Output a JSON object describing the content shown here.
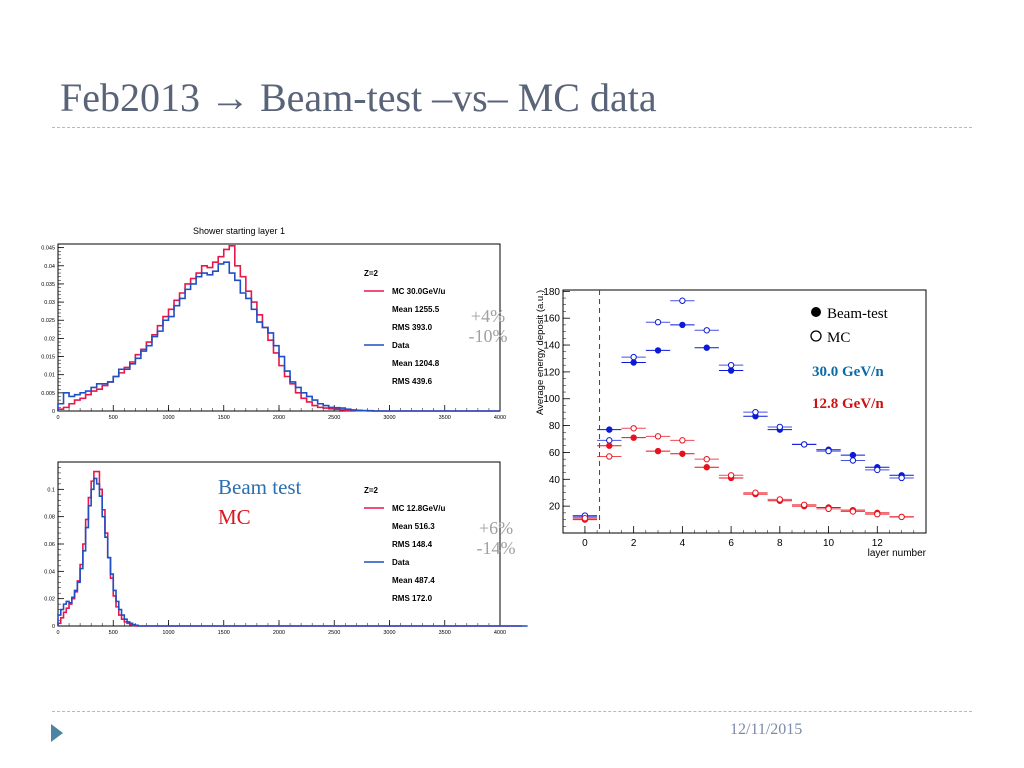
{
  "slide": {
    "title": "Feb2013 → Beam-test –vs– MC data",
    "date": "12/11/2015"
  },
  "colors": {
    "mc": "#e8174a",
    "data": "#1f4fc4",
    "blue_marker": "#0a1ad6",
    "red_marker": "#e8101c",
    "title": "#5a6478",
    "bullet": "#4a86a4"
  },
  "overlays": {
    "top_pct_mean": "+4%",
    "top_pct_rms": "-10%",
    "bottom_pct_mean": "+6%",
    "bottom_pct_rms": "-14%",
    "beam_test_label": "Beam test",
    "mc_label": "MC"
  },
  "chart_data": [
    {
      "type": "step-histogram",
      "title": "Shower starting layer 1",
      "xlim": [
        0,
        4000
      ],
      "ylim": [
        0,
        0.046
      ],
      "x_ticks": [
        0,
        500,
        1000,
        1500,
        2000,
        2500,
        3000,
        3500,
        4000
      ],
      "y_ticks": [
        0,
        0.005,
        0.01,
        0.015,
        0.02,
        0.025,
        0.03,
        0.035,
        0.04,
        0.045
      ],
      "y_tick_labels": [
        "0",
        "0.005",
        "0.01",
        "0.015",
        "0.02",
        "0.025",
        "0.03",
        "0.035",
        "0.04",
        "0.045"
      ],
      "bin_width": 50,
      "legend": {
        "header": "Z=2",
        "entries": [
          {
            "name": "MC 30.0GeV/u",
            "color": "#e8174a",
            "stats": [
              "Mean  1255.5",
              "RMS  393.0"
            ]
          },
          {
            "name": "Data",
            "color": "#1f4fc4",
            "stats": [
              "Mean  1204.8",
              "RMS  439.6"
            ]
          }
        ]
      },
      "series": [
        {
          "name": "MC 30.0GeV/u",
          "color": "#e8174a",
          "values": [
            0.0005,
            0.001,
            0.002,
            0.003,
            0.0035,
            0.0045,
            0.0055,
            0.006,
            0.007,
            0.008,
            0.0095,
            0.0105,
            0.012,
            0.0135,
            0.0155,
            0.017,
            0.019,
            0.021,
            0.0235,
            0.026,
            0.028,
            0.0305,
            0.0325,
            0.035,
            0.0365,
            0.038,
            0.04,
            0.0395,
            0.041,
            0.0425,
            0.0445,
            0.0455,
            0.04,
            0.037,
            0.033,
            0.03,
            0.0265,
            0.023,
            0.0195,
            0.016,
            0.0125,
            0.0095,
            0.0075,
            0.005,
            0.0035,
            0.0025,
            0.0015,
            0.001,
            0.0008,
            0.0006,
            0.0005,
            0.0003,
            0.0002,
            0.0002,
            0.0001,
            0.0001,
            0,
            0,
            0,
            0,
            0,
            0,
            0,
            0,
            0,
            0,
            0,
            0,
            0,
            0,
            0,
            0,
            0,
            0,
            0,
            0,
            0,
            0,
            0,
            0
          ]
        },
        {
          "name": "Data",
          "color": "#1f4fc4",
          "values": [
            0.002,
            0.005,
            0.004,
            0.0045,
            0.005,
            0.0055,
            0.0065,
            0.0075,
            0.0075,
            0.008,
            0.0095,
            0.0115,
            0.0115,
            0.013,
            0.0145,
            0.0165,
            0.018,
            0.0205,
            0.022,
            0.025,
            0.026,
            0.029,
            0.031,
            0.0335,
            0.035,
            0.037,
            0.038,
            0.0375,
            0.0385,
            0.0405,
            0.041,
            0.038,
            0.036,
            0.0325,
            0.031,
            0.028,
            0.0245,
            0.023,
            0.0215,
            0.018,
            0.015,
            0.011,
            0.008,
            0.0065,
            0.005,
            0.004,
            0.003,
            0.002,
            0.0015,
            0.001,
            0.0009,
            0.0008,
            0.0005,
            0.0003,
            0.0002,
            0.0001,
            0.0001,
            0,
            0,
            0,
            0,
            0,
            0,
            0,
            0,
            0,
            0,
            0,
            0,
            0,
            0,
            0,
            0,
            0,
            0,
            0,
            0,
            0,
            0,
            0
          ]
        }
      ]
    },
    {
      "type": "step-histogram",
      "title": "",
      "xlim": [
        0,
        4000
      ],
      "ylim": [
        0,
        0.12
      ],
      "x_ticks": [
        0,
        500,
        1000,
        1500,
        2000,
        2500,
        3000,
        3500,
        4000
      ],
      "y_ticks": [
        0,
        0.02,
        0.04,
        0.06,
        0.08,
        0.1
      ],
      "y_tick_labels": [
        "0",
        "0.02",
        "0.04",
        "0.06",
        "0.08",
        "0.1"
      ],
      "bin_width": 25,
      "legend": {
        "header": "Z=2",
        "entries": [
          {
            "name": "MC 12.8GeV/u",
            "color": "#e8174a",
            "stats": [
              "Mean  516.3",
              "RMS  148.4"
            ]
          },
          {
            "name": "Data",
            "color": "#1f4fc4",
            "stats": [
              "Mean  487.4",
              "RMS  172.0"
            ]
          }
        ]
      },
      "series": [
        {
          "name": "MC 12.8GeV/u",
          "color": "#e8174a",
          "values": [
            0.002,
            0.006,
            0.01,
            0.013,
            0.016,
            0.02,
            0.025,
            0.033,
            0.045,
            0.06,
            0.078,
            0.094,
            0.106,
            0.113,
            0.113,
            0.1,
            0.085,
            0.068,
            0.05,
            0.035,
            0.022,
            0.014,
            0.008,
            0.005,
            0.003,
            0.002,
            0.001,
            0.0005,
            0,
            0,
            0,
            0,
            0,
            0,
            0,
            0,
            0,
            0,
            0,
            0,
            0,
            0,
            0,
            0,
            0,
            0,
            0,
            0,
            0,
            0,
            0,
            0,
            0,
            0,
            0,
            0,
            0,
            0,
            0,
            0,
            0,
            0,
            0,
            0,
            0,
            0,
            0,
            0,
            0,
            0,
            0,
            0,
            0,
            0,
            0,
            0,
            0,
            0,
            0,
            0,
            0,
            0,
            0,
            0,
            0,
            0,
            0,
            0,
            0,
            0,
            0,
            0,
            0,
            0,
            0,
            0,
            0,
            0,
            0,
            0,
            0,
            0,
            0,
            0,
            0,
            0,
            0,
            0,
            0,
            0,
            0,
            0,
            0,
            0,
            0,
            0,
            0,
            0,
            0,
            0,
            0,
            0,
            0,
            0,
            0,
            0,
            0,
            0,
            0,
            0,
            0,
            0,
            0,
            0,
            0,
            0,
            0,
            0,
            0,
            0,
            0,
            0,
            0,
            0,
            0,
            0,
            0,
            0,
            0,
            0,
            0,
            0,
            0,
            0,
            0,
            0,
            0,
            0,
            0,
            0,
            0,
            0,
            0,
            0,
            0,
            0,
            0,
            0
          ]
        },
        {
          "name": "Data",
          "color": "#1f4fc4",
          "values": [
            0.008,
            0.012,
            0.016,
            0.018,
            0.017,
            0.021,
            0.026,
            0.032,
            0.042,
            0.055,
            0.072,
            0.088,
            0.1,
            0.108,
            0.104,
            0.095,
            0.08,
            0.065,
            0.05,
            0.038,
            0.026,
            0.018,
            0.012,
            0.008,
            0.005,
            0.003,
            0.002,
            0.001,
            0.0005,
            0,
            0,
            0,
            0,
            0,
            0,
            0,
            0,
            0,
            0,
            0,
            0,
            0,
            0,
            0,
            0,
            0,
            0,
            0,
            0,
            0,
            0,
            0,
            0,
            0,
            0,
            0,
            0,
            0,
            0,
            0,
            0,
            0,
            0,
            0,
            0,
            0,
            0,
            0,
            0,
            0,
            0,
            0,
            0,
            0,
            0,
            0,
            0,
            0,
            0,
            0,
            0,
            0,
            0,
            0,
            0,
            0,
            0,
            0,
            0,
            0,
            0,
            0,
            0,
            0,
            0,
            0,
            0,
            0,
            0,
            0,
            0,
            0,
            0,
            0,
            0,
            0,
            0,
            0,
            0,
            0,
            0,
            0,
            0,
            0,
            0,
            0,
            0,
            0,
            0,
            0,
            0,
            0,
            0,
            0,
            0,
            0,
            0,
            0,
            0,
            0,
            0,
            0,
            0,
            0,
            0,
            0,
            0,
            0,
            0,
            0,
            0,
            0,
            0,
            0,
            0,
            0,
            0,
            0,
            0,
            0,
            0,
            0,
            0,
            0,
            0,
            0,
            0,
            0,
            0,
            0,
            0,
            0,
            0,
            0,
            0,
            0,
            0,
            0,
            0,
            0
          ]
        }
      ]
    },
    {
      "type": "scatter",
      "title": "",
      "xlabel": "layer number",
      "ylabel": "Average energy deposit (a.u.)",
      "xlim": [
        -0.9,
        14
      ],
      "ylim": [
        0,
        181
      ],
      "x_ticks": [
        0,
        2,
        4,
        6,
        8,
        10,
        12
      ],
      "y_ticks": [
        20,
        40,
        60,
        80,
        100,
        120,
        140,
        160,
        180
      ],
      "cut_line_x": 0.6,
      "legend": [
        {
          "name": "Beam-test",
          "marker": "filled"
        },
        {
          "name": "MC",
          "marker": "open"
        }
      ],
      "energy_labels": [
        {
          "text": "30.0 GeV/n",
          "color": "#0a6aa8"
        },
        {
          "text": "12.8 GeV/n",
          "color": "#d01010"
        }
      ],
      "series": [
        {
          "name": "Beam-test 30.0 GeV/n",
          "color": "#0a1ad6",
          "marker": "filled",
          "x": [
            0,
            1,
            2,
            3,
            4,
            5,
            6,
            7,
            8,
            9,
            10,
            11,
            12,
            13
          ],
          "y": [
            12,
            77,
            127,
            136,
            155,
            138,
            121,
            87,
            77,
            66,
            62,
            58,
            49,
            43
          ]
        },
        {
          "name": "MC 30.0 GeV/n",
          "color": "#0a1ad6",
          "marker": "open",
          "x": [
            0,
            1,
            2,
            3,
            4,
            5,
            6,
            7,
            8,
            9,
            10,
            11,
            12,
            13
          ],
          "y": [
            13,
            69,
            131,
            157,
            173,
            151,
            125,
            90,
            79,
            66,
            61,
            54,
            47,
            41
          ]
        },
        {
          "name": "Beam-test 12.8 GeV/n",
          "color": "#e8101c",
          "marker": "filled",
          "x": [
            0,
            1,
            2,
            3,
            4,
            5,
            6,
            7,
            8,
            9,
            10,
            11,
            12,
            13
          ],
          "y": [
            10,
            65,
            71,
            61,
            59,
            49,
            41,
            29,
            24,
            20,
            19,
            17,
            15,
            12
          ]
        },
        {
          "name": "MC 12.8 GeV/n",
          "color": "#e8101c",
          "marker": "open",
          "x": [
            0,
            1,
            2,
            3,
            4,
            5,
            6,
            7,
            8,
            9,
            10,
            11,
            12,
            13
          ],
          "y": [
            11,
            57,
            78,
            72,
            69,
            55,
            43,
            30,
            25,
            21,
            18,
            16,
            14,
            12
          ]
        }
      ]
    }
  ]
}
